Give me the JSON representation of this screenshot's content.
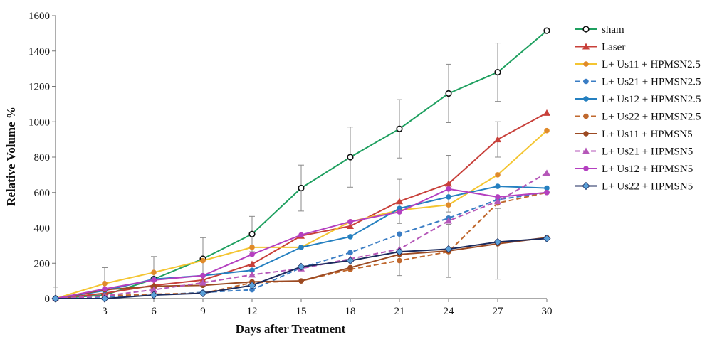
{
  "chart_data": {
    "type": "line",
    "title": "",
    "xlabel": "Days after Treatment",
    "ylabel": "Relative Volume %",
    "x": [
      0,
      3,
      6,
      9,
      12,
      15,
      18,
      21,
      24,
      27,
      30
    ],
    "x_tick_labels": [
      "3",
      "6",
      "9",
      "12",
      "15",
      "18",
      "21",
      "24",
      "27",
      "30"
    ],
    "y_tick_labels": [
      "0",
      "200",
      "400",
      "600",
      "800",
      "1000",
      "1200",
      "1400",
      "1600"
    ],
    "xlim": [
      0,
      30
    ],
    "ylim": [
      0,
      1600
    ],
    "grid": false,
    "legend_position": "right",
    "series": [
      {
        "name": "sham",
        "color": "#1fa060",
        "dash": false,
        "marker": "circle-open",
        "values": [
          0,
          20,
          110,
          225,
          365,
          625,
          800,
          960,
          1160,
          1280,
          1515
        ],
        "err": [
          0,
          0,
          0,
          120,
          100,
          130,
          170,
          165,
          165,
          165,
          0
        ]
      },
      {
        "name": "Laser",
        "color": "#c8403a",
        "dash": false,
        "marker": "triangle",
        "values": [
          0,
          30,
          75,
          105,
          195,
          355,
          410,
          550,
          650,
          900,
          1050
        ],
        "err": [
          0,
          0,
          0,
          0,
          0,
          0,
          0,
          125,
          160,
          100,
          0
        ]
      },
      {
        "name": "L+ Us11 + HPMSN2.5",
        "color": "#f4c531",
        "dash": false,
        "marker": "circle-orange",
        "values": [
          0,
          85,
          148,
          215,
          290,
          290,
          435,
          500,
          530,
          700,
          950
        ],
        "err": [
          65,
          90,
          90,
          130,
          0,
          0,
          0,
          0,
          0,
          0,
          0
        ]
      },
      {
        "name": "L+ Us21 + HPMSN2.5",
        "color": "#3a7dc4",
        "dash": true,
        "marker": "circle",
        "values": [
          0,
          10,
          20,
          35,
          50,
          175,
          260,
          365,
          455,
          560,
          600
        ],
        "err": [
          0,
          0,
          0,
          0,
          0,
          0,
          0,
          0,
          0,
          0,
          0
        ]
      },
      {
        "name": "L+ Us12 + HPMSN2.5",
        "color": "#2580c0",
        "dash": false,
        "marker": "circle",
        "values": [
          0,
          45,
          110,
          130,
          160,
          290,
          350,
          510,
          575,
          635,
          625
        ],
        "err": [
          0,
          0,
          0,
          0,
          0,
          0,
          0,
          0,
          0,
          0,
          0
        ]
      },
      {
        "name": "L+ Us22 + HPMSN2.5",
        "color": "#c0682e",
        "dash": true,
        "marker": "circle",
        "values": [
          0,
          15,
          25,
          30,
          90,
          100,
          165,
          215,
          265,
          540,
          600
        ],
        "err": [
          0,
          0,
          0,
          0,
          0,
          0,
          0,
          0,
          0,
          0,
          0
        ]
      },
      {
        "name": "L+ Us11 + HPMSN5",
        "color": "#9c4a22",
        "dash": false,
        "marker": "circle",
        "values": [
          0,
          50,
          70,
          75,
          95,
          100,
          175,
          250,
          270,
          310,
          345
        ],
        "err": [
          0,
          0,
          0,
          0,
          0,
          0,
          0,
          120,
          150,
          200,
          0
        ]
      },
      {
        "name": "L+ Us21 + HPMSN5",
        "color": "#b557b8",
        "dash": true,
        "marker": "triangle",
        "values": [
          0,
          15,
          50,
          90,
          135,
          170,
          225,
          280,
          440,
          550,
          710
        ],
        "err": [
          0,
          0,
          0,
          0,
          0,
          0,
          0,
          0,
          0,
          0,
          0
        ]
      },
      {
        "name": "L+ Us12 + HPMSN5",
        "color": "#b43fc0",
        "dash": false,
        "marker": "circle",
        "values": [
          0,
          55,
          105,
          130,
          250,
          360,
          435,
          490,
          620,
          575,
          600
        ],
        "err": [
          0,
          0,
          0,
          0,
          0,
          0,
          0,
          0,
          0,
          0,
          0
        ]
      },
      {
        "name": "L+ Us22 + HPMSN5",
        "color": "#1b2a5c",
        "dash": false,
        "marker": "diamond",
        "values": [
          0,
          0,
          20,
          30,
          75,
          180,
          215,
          265,
          280,
          320,
          340
        ],
        "err": [
          0,
          0,
          0,
          0,
          0,
          0,
          0,
          0,
          0,
          0,
          0
        ]
      }
    ]
  }
}
